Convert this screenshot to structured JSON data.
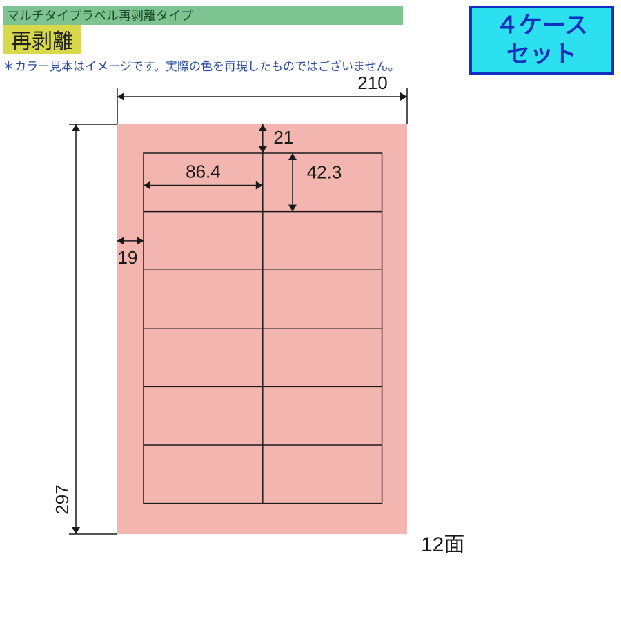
{
  "header": {
    "strip_text": "マルチタイプラベル再剥離タイプ",
    "strip_bg": "#7ec492",
    "strip_color": "#1a4a2a",
    "badge_text": "再剥離",
    "badge_bg": "#d7d84a",
    "badge_color": "#222222",
    "disclaimer_text": "＊カラー見本はイメージです。実際の色を再現したものではございません。",
    "disclaimer_color": "#2a4aa0"
  },
  "case_badge": {
    "line1": "４ケース",
    "line2": "セット",
    "bg": "#2de0f0",
    "border": "#1030c0",
    "color": "#1030c0",
    "border_width": 4
  },
  "sheet": {
    "width_mm": 210,
    "height_mm": 297,
    "margin_top_mm": 21,
    "margin_left_mm": 19,
    "label_width_mm": 86.4,
    "label_height_mm": 42.3,
    "cols": 2,
    "rows": 6,
    "sheet_color": "#f3b5af",
    "line_color": "#1a1a1a",
    "line_width": 1.5,
    "dim_font_size": 26,
    "arrow_size": 10,
    "faces_label": "12面",
    "faces_font_size": 30
  },
  "dims": {
    "width": "210",
    "height": "297",
    "margin_top": "21",
    "margin_left": "19",
    "label_w": "86.4",
    "label_h": "42.3"
  }
}
